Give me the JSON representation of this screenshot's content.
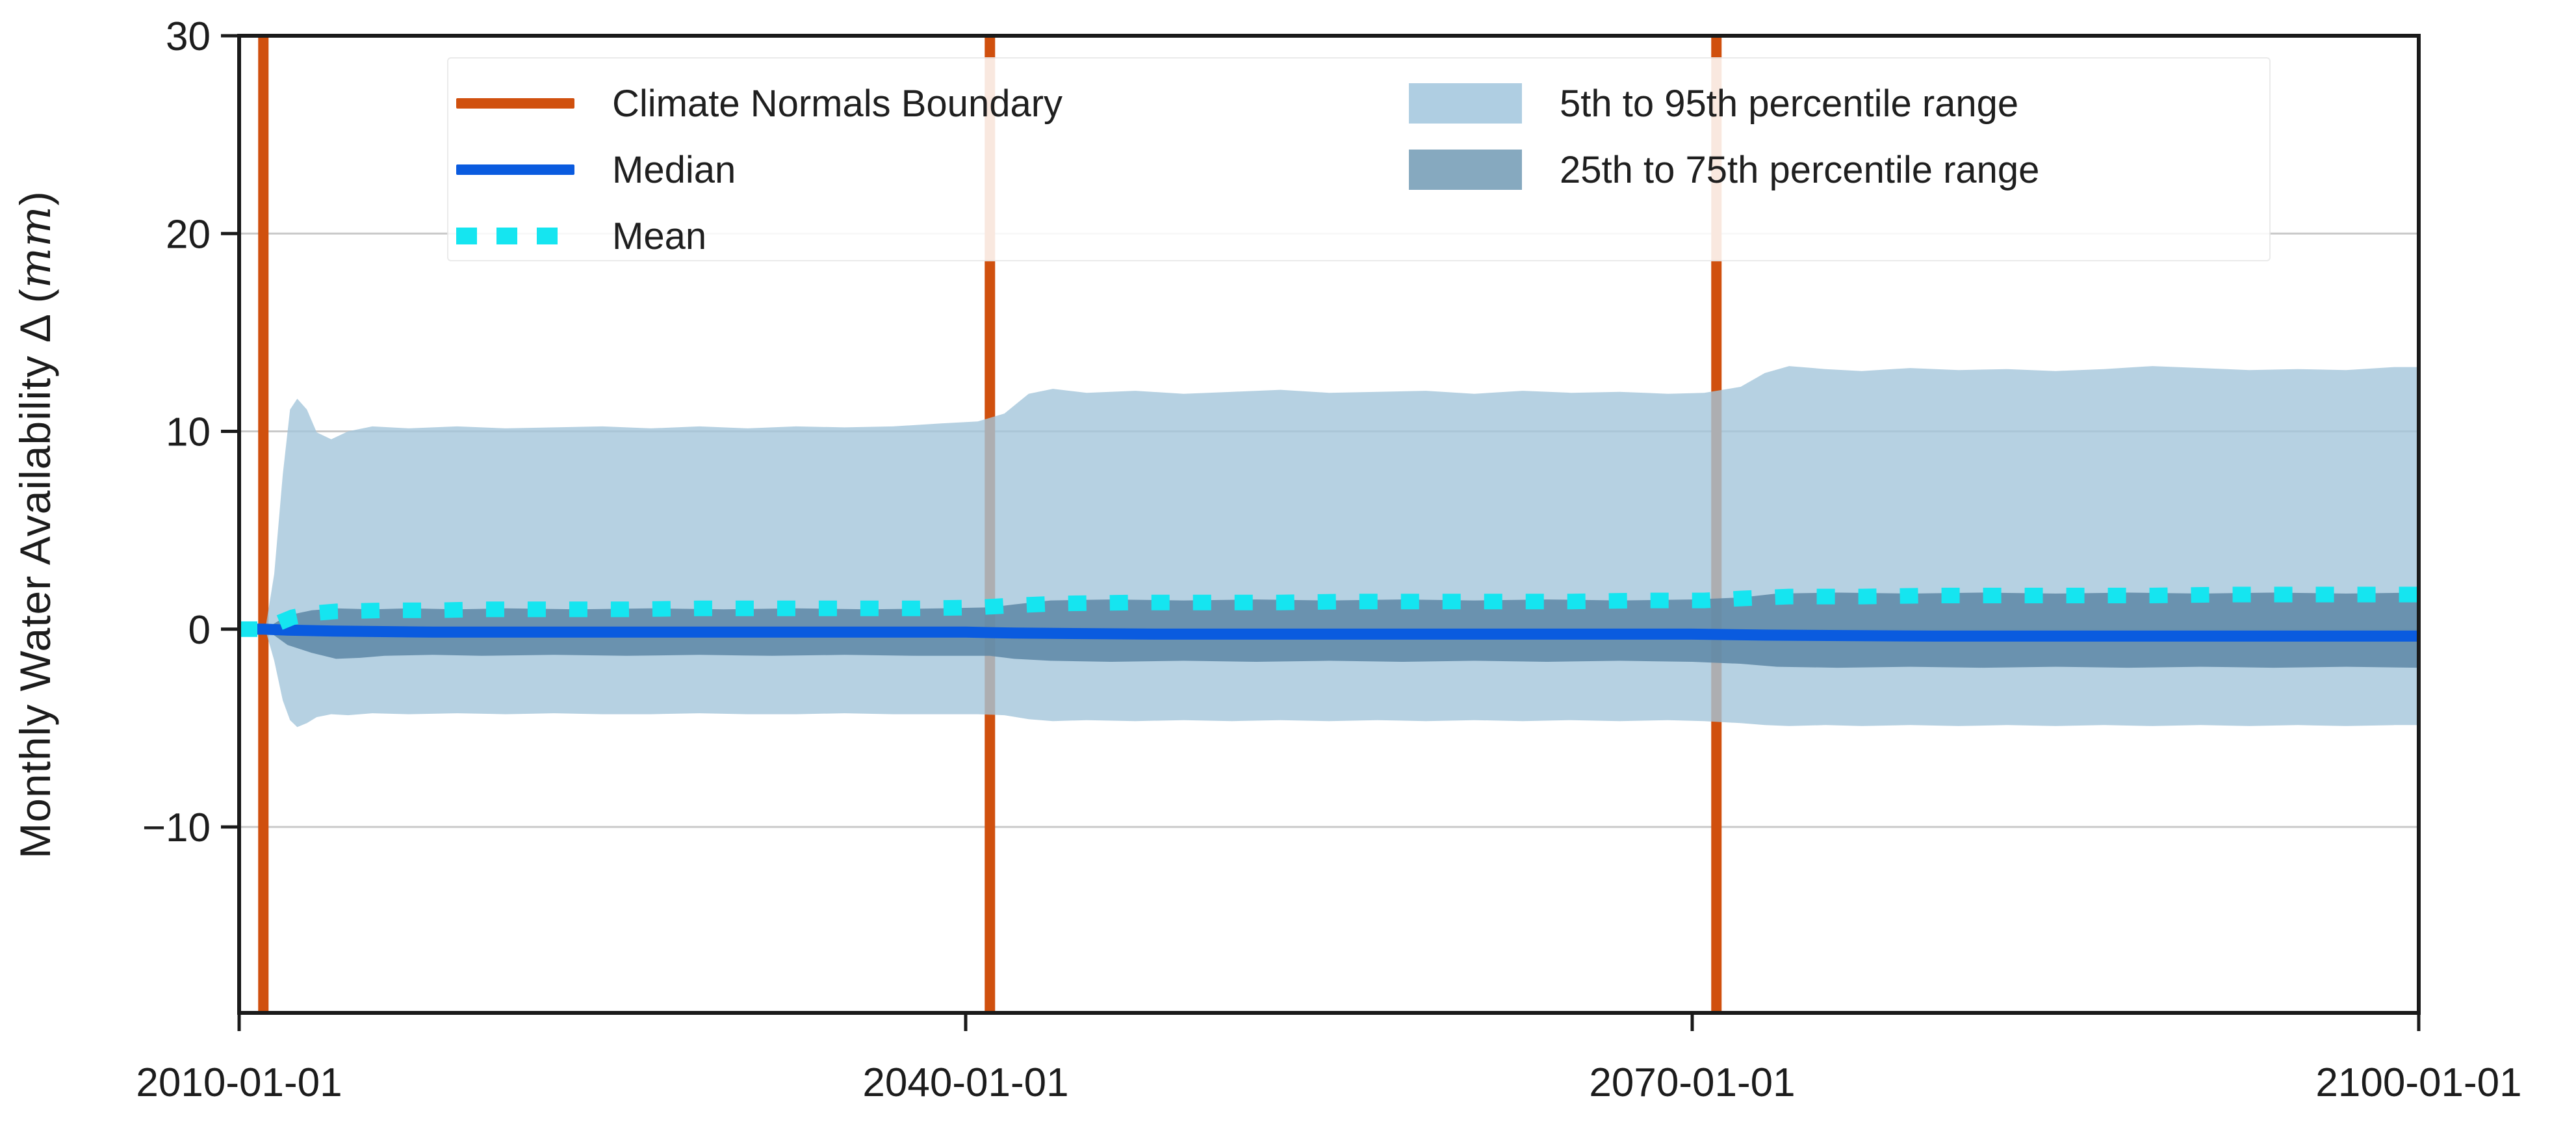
{
  "chart_data": {
    "type": "line",
    "subtype": "time-series with percentile bands",
    "title": "",
    "xlabel": "",
    "ylabel_prefix": "Monthly Water Availability Δ (",
    "ylabel_italic": "mm",
    "ylabel_suffix": ")",
    "xlim": [
      2010,
      2100
    ],
    "ylim": [
      -19.4,
      30
    ],
    "grid": "horizontal",
    "grid_values": [
      20,
      10,
      0,
      -10
    ],
    "x_ticks": [
      {
        "label": "2010-01-01",
        "value": 2010
      },
      {
        "label": "2040-01-01",
        "value": 2040
      },
      {
        "label": "2070-01-01",
        "value": 2070
      },
      {
        "label": "2100-01-01",
        "value": 2100
      }
    ],
    "y_ticks": [
      {
        "label": "30",
        "value": 30
      },
      {
        "label": "20",
        "value": 20
      },
      {
        "label": "10",
        "value": 10
      },
      {
        "label": "0",
        "value": 0
      },
      {
        "label": "−10",
        "value": -10
      }
    ],
    "boundaries_x": [
      2011,
      2041,
      2071
    ],
    "legend": {
      "items": [
        {
          "label": "Climate Normals Boundary",
          "swatch": "boundary"
        },
        {
          "label": "Median",
          "swatch": "median"
        },
        {
          "label": "Mean",
          "swatch": "mean"
        },
        {
          "label": "5th to 95th percentile range",
          "swatch": "band_light"
        },
        {
          "label": "25th to 75th percentile range",
          "swatch": "band_dark"
        }
      ]
    },
    "colors": {
      "boundary": "#D0500E",
      "median": "#0A5BDF",
      "mean": "#15E5F0",
      "band_light": "#A4C5DB",
      "band_dark": "#5D87A6",
      "legend_band_light": "#AFCEE2",
      "legend_band_dark": "#86A9BF",
      "grid": "#C9C9C9",
      "spine": "#1A1A1A",
      "text": "#1C1C1C"
    },
    "series": [
      {
        "name": "p95",
        "points": [
          [
            2010,
            0
          ],
          [
            2010.8,
            0
          ],
          [
            2011.1,
            0.15
          ],
          [
            2011.45,
            2.8
          ],
          [
            2011.8,
            7.8
          ],
          [
            2012.1,
            11.1
          ],
          [
            2012.4,
            11.65
          ],
          [
            2012.8,
            11.1
          ],
          [
            2013.2,
            9.95
          ],
          [
            2013.8,
            9.6
          ],
          [
            2014.5,
            10.0
          ],
          [
            2015.5,
            10.25
          ],
          [
            2017,
            10.15
          ],
          [
            2019,
            10.25
          ],
          [
            2021,
            10.15
          ],
          [
            2023,
            10.2
          ],
          [
            2025,
            10.25
          ],
          [
            2027,
            10.15
          ],
          [
            2029,
            10.25
          ],
          [
            2031,
            10.15
          ],
          [
            2033,
            10.25
          ],
          [
            2035,
            10.2
          ],
          [
            2037,
            10.25
          ],
          [
            2039,
            10.4
          ],
          [
            2040.5,
            10.5
          ],
          [
            2041.6,
            10.9
          ],
          [
            2042.6,
            11.9
          ],
          [
            2043.6,
            12.15
          ],
          [
            2045,
            11.95
          ],
          [
            2047,
            12.05
          ],
          [
            2049,
            11.9
          ],
          [
            2051,
            12.0
          ],
          [
            2053,
            12.1
          ],
          [
            2055,
            11.95
          ],
          [
            2057,
            12.0
          ],
          [
            2059,
            12.05
          ],
          [
            2061,
            11.9
          ],
          [
            2063,
            12.05
          ],
          [
            2065,
            11.95
          ],
          [
            2067,
            12.0
          ],
          [
            2069,
            11.9
          ],
          [
            2070.5,
            11.95
          ],
          [
            2072,
            12.25
          ],
          [
            2073,
            12.95
          ],
          [
            2074,
            13.3
          ],
          [
            2075.5,
            13.15
          ],
          [
            2077,
            13.05
          ],
          [
            2079,
            13.2
          ],
          [
            2081,
            13.1
          ],
          [
            2083,
            13.15
          ],
          [
            2085,
            13.05
          ],
          [
            2087,
            13.15
          ],
          [
            2089,
            13.3
          ],
          [
            2091,
            13.2
          ],
          [
            2093,
            13.1
          ],
          [
            2095,
            13.15
          ],
          [
            2097,
            13.1
          ],
          [
            2099,
            13.25
          ],
          [
            2100,
            13.25
          ]
        ]
      },
      {
        "name": "p75",
        "points": [
          [
            2010,
            0
          ],
          [
            2010.8,
            0
          ],
          [
            2011.2,
            0.1
          ],
          [
            2011.6,
            0.4
          ],
          [
            2012,
            0.7
          ],
          [
            2013,
            0.95
          ],
          [
            2014,
            1.05
          ],
          [
            2015.5,
            1.0
          ],
          [
            2017,
            1.05
          ],
          [
            2019,
            1.0
          ],
          [
            2021,
            1.05
          ],
          [
            2024,
            1.0
          ],
          [
            2027,
            1.05
          ],
          [
            2030,
            1.0
          ],
          [
            2033,
            1.05
          ],
          [
            2036,
            1.0
          ],
          [
            2039,
            1.05
          ],
          [
            2041,
            1.1
          ],
          [
            2042,
            1.25
          ],
          [
            2043.5,
            1.45
          ],
          [
            2046,
            1.5
          ],
          [
            2049,
            1.45
          ],
          [
            2052,
            1.5
          ],
          [
            2055,
            1.45
          ],
          [
            2058,
            1.5
          ],
          [
            2061,
            1.45
          ],
          [
            2064,
            1.5
          ],
          [
            2067,
            1.45
          ],
          [
            2070,
            1.5
          ],
          [
            2072,
            1.6
          ],
          [
            2073.5,
            1.8
          ],
          [
            2076,
            1.85
          ],
          [
            2079,
            1.8
          ],
          [
            2082,
            1.85
          ],
          [
            2085,
            1.8
          ],
          [
            2088,
            1.85
          ],
          [
            2091,
            1.8
          ],
          [
            2094,
            1.85
          ],
          [
            2097,
            1.8
          ],
          [
            2100,
            1.85
          ]
        ]
      },
      {
        "name": "median",
        "points": [
          [
            2010,
            0
          ],
          [
            2011,
            0
          ],
          [
            2012,
            -0.05
          ],
          [
            2014,
            -0.1
          ],
          [
            2018,
            -0.15
          ],
          [
            2025,
            -0.15
          ],
          [
            2032,
            -0.15
          ],
          [
            2040,
            -0.15
          ],
          [
            2042,
            -0.2
          ],
          [
            2048,
            -0.25
          ],
          [
            2055,
            -0.25
          ],
          [
            2062,
            -0.25
          ],
          [
            2070,
            -0.25
          ],
          [
            2073,
            -0.3
          ],
          [
            2080,
            -0.35
          ],
          [
            2088,
            -0.35
          ],
          [
            2095,
            -0.35
          ],
          [
            2100,
            -0.35
          ]
        ]
      },
      {
        "name": "mean",
        "points": [
          [
            2010,
            0
          ],
          [
            2010.8,
            0
          ],
          [
            2011.2,
            0.1
          ],
          [
            2011.7,
            0.35
          ],
          [
            2012.2,
            0.6
          ],
          [
            2013,
            0.8
          ],
          [
            2014,
            0.9
          ],
          [
            2016,
            0.95
          ],
          [
            2018,
            0.95
          ],
          [
            2020,
            1.0
          ],
          [
            2023,
            1.0
          ],
          [
            2026,
            1.0
          ],
          [
            2029,
            1.05
          ],
          [
            2032,
            1.05
          ],
          [
            2035,
            1.05
          ],
          [
            2038,
            1.05
          ],
          [
            2040.5,
            1.1
          ],
          [
            2042,
            1.2
          ],
          [
            2044,
            1.3
          ],
          [
            2047,
            1.35
          ],
          [
            2050,
            1.35
          ],
          [
            2053,
            1.35
          ],
          [
            2056,
            1.4
          ],
          [
            2059,
            1.4
          ],
          [
            2062,
            1.4
          ],
          [
            2065,
            1.4
          ],
          [
            2068,
            1.45
          ],
          [
            2070.5,
            1.45
          ],
          [
            2072,
            1.55
          ],
          [
            2074,
            1.65
          ],
          [
            2077,
            1.65
          ],
          [
            2080,
            1.7
          ],
          [
            2083,
            1.7
          ],
          [
            2086,
            1.7
          ],
          [
            2089,
            1.7
          ],
          [
            2092,
            1.75
          ],
          [
            2095,
            1.75
          ],
          [
            2098,
            1.75
          ],
          [
            2100,
            1.75
          ]
        ]
      },
      {
        "name": "p25",
        "points": [
          [
            2010,
            0
          ],
          [
            2010.8,
            0
          ],
          [
            2011.2,
            -0.1
          ],
          [
            2011.6,
            -0.45
          ],
          [
            2012,
            -0.8
          ],
          [
            2013,
            -1.2
          ],
          [
            2014,
            -1.5
          ],
          [
            2015,
            -1.45
          ],
          [
            2016,
            -1.35
          ],
          [
            2018,
            -1.3
          ],
          [
            2020,
            -1.35
          ],
          [
            2023,
            -1.3
          ],
          [
            2026,
            -1.35
          ],
          [
            2029,
            -1.3
          ],
          [
            2032,
            -1.35
          ],
          [
            2035,
            -1.3
          ],
          [
            2038,
            -1.35
          ],
          [
            2041,
            -1.35
          ],
          [
            2042,
            -1.5
          ],
          [
            2043.5,
            -1.6
          ],
          [
            2046,
            -1.65
          ],
          [
            2049,
            -1.6
          ],
          [
            2052,
            -1.65
          ],
          [
            2055,
            -1.6
          ],
          [
            2058,
            -1.65
          ],
          [
            2061,
            -1.6
          ],
          [
            2064,
            -1.65
          ],
          [
            2067,
            -1.6
          ],
          [
            2070,
            -1.65
          ],
          [
            2072,
            -1.75
          ],
          [
            2073.5,
            -1.9
          ],
          [
            2076,
            -1.95
          ],
          [
            2079,
            -1.9
          ],
          [
            2082,
            -1.95
          ],
          [
            2085,
            -1.9
          ],
          [
            2088,
            -1.95
          ],
          [
            2091,
            -1.9
          ],
          [
            2094,
            -1.95
          ],
          [
            2097,
            -1.9
          ],
          [
            2100,
            -1.95
          ]
        ]
      },
      {
        "name": "p5",
        "points": [
          [
            2010,
            0
          ],
          [
            2010.8,
            0
          ],
          [
            2011.1,
            -0.1
          ],
          [
            2011.45,
            -1.6
          ],
          [
            2011.8,
            -3.6
          ],
          [
            2012.1,
            -4.6
          ],
          [
            2012.4,
            -4.95
          ],
          [
            2012.8,
            -4.75
          ],
          [
            2013.2,
            -4.45
          ],
          [
            2013.8,
            -4.3
          ],
          [
            2014.5,
            -4.35
          ],
          [
            2015.5,
            -4.25
          ],
          [
            2017,
            -4.3
          ],
          [
            2019,
            -4.25
          ],
          [
            2021,
            -4.3
          ],
          [
            2023,
            -4.25
          ],
          [
            2025,
            -4.3
          ],
          [
            2027,
            -4.3
          ],
          [
            2029,
            -4.25
          ],
          [
            2031,
            -4.3
          ],
          [
            2033,
            -4.3
          ],
          [
            2035,
            -4.25
          ],
          [
            2037,
            -4.3
          ],
          [
            2039,
            -4.3
          ],
          [
            2040.5,
            -4.3
          ],
          [
            2041.6,
            -4.35
          ],
          [
            2042.6,
            -4.55
          ],
          [
            2043.6,
            -4.65
          ],
          [
            2045,
            -4.6
          ],
          [
            2047,
            -4.65
          ],
          [
            2049,
            -4.6
          ],
          [
            2051,
            -4.65
          ],
          [
            2053,
            -4.6
          ],
          [
            2055,
            -4.65
          ],
          [
            2057,
            -4.6
          ],
          [
            2059,
            -4.65
          ],
          [
            2061,
            -4.6
          ],
          [
            2063,
            -4.65
          ],
          [
            2065,
            -4.6
          ],
          [
            2067,
            -4.65
          ],
          [
            2069,
            -4.6
          ],
          [
            2070.5,
            -4.65
          ],
          [
            2072,
            -4.75
          ],
          [
            2073,
            -4.85
          ],
          [
            2074,
            -4.9
          ],
          [
            2075.5,
            -4.85
          ],
          [
            2077,
            -4.9
          ],
          [
            2079,
            -4.85
          ],
          [
            2081,
            -4.9
          ],
          [
            2083,
            -4.85
          ],
          [
            2085,
            -4.9
          ],
          [
            2087,
            -4.85
          ],
          [
            2089,
            -4.9
          ],
          [
            2091,
            -4.85
          ],
          [
            2093,
            -4.9
          ],
          [
            2095,
            -4.85
          ],
          [
            2097,
            -4.9
          ],
          [
            2099,
            -4.85
          ],
          [
            2100,
            -4.85
          ]
        ]
      }
    ]
  }
}
